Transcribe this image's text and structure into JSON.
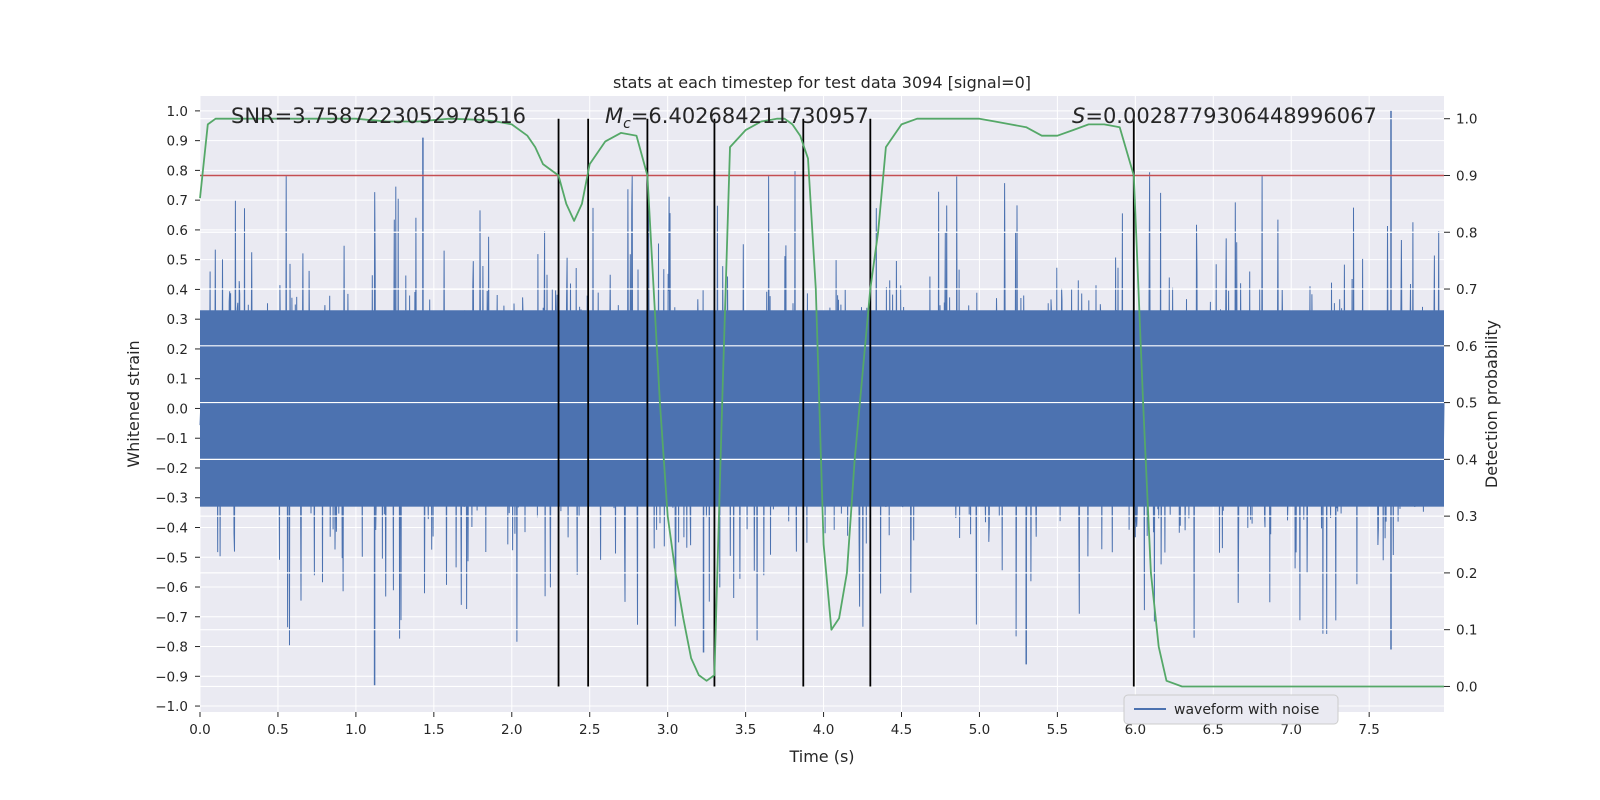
{
  "chart_data": {
    "type": "line",
    "title": "stats at each timestep for test data 3094 [signal=0]",
    "xlabel": "Time (s)",
    "ylabel": "Whitened strain",
    "y2label": "Detection probability",
    "xlim": [
      0.0,
      7.98
    ],
    "ylim": [
      -1.02,
      1.05
    ],
    "y2lim": [
      -0.045,
      1.04
    ],
    "x_ticks": [
      "0.0",
      "0.5",
      "1.0",
      "1.5",
      "2.0",
      "2.5",
      "3.0",
      "3.5",
      "4.0",
      "4.5",
      "5.0",
      "5.5",
      "6.0",
      "6.5",
      "7.0",
      "7.5"
    ],
    "y_ticks": [
      "1.0",
      "0.9",
      "0.8",
      "0.7",
      "0.6",
      "0.5",
      "0.4",
      "0.3",
      "0.2",
      "0.1",
      "0.0",
      "−0.1",
      "−0.2",
      "−0.3",
      "−0.4",
      "−0.5",
      "−0.6",
      "−0.7",
      "−0.8",
      "−0.9",
      "−1.0"
    ],
    "y2_ticks": [
      "1.0",
      "0.9",
      "0.8",
      "0.7",
      "0.6",
      "0.5",
      "0.4",
      "0.3",
      "0.2",
      "0.1",
      "0.0"
    ],
    "annotations": {
      "snr_label": "SNR=3.7587223052978516",
      "mc_symbol": "M",
      "mc_subscript": "c",
      "mc_value": "=6.402684211730957",
      "s_symbol": "S",
      "s_value": "=0.0028779306448996067"
    },
    "threshold": {
      "value": 0.9,
      "axis": "right",
      "color": "#c44e52"
    },
    "vertical_lines": [
      2.3,
      2.49,
      2.87,
      3.3,
      3.87,
      4.3,
      5.99
    ],
    "vertical_line_range": [
      0.0,
      1.0
    ],
    "legend": {
      "label": "waveform with noise",
      "position": "lower-right"
    },
    "series": [
      {
        "name": "waveform with noise",
        "axis": "left",
        "color": "#4c72b0",
        "kind": "noise",
        "duration": 8.0,
        "typical_abs_max": 0.55,
        "peaks": [
          {
            "x": 1.12,
            "y": -0.93
          },
          {
            "x": 1.43,
            "y": 0.91
          },
          {
            "x": 3.23,
            "y": -0.82
          },
          {
            "x": 5.3,
            "y": -0.86
          },
          {
            "x": 7.64,
            "y": 1.0
          },
          {
            "x": 7.64,
            "y": -0.81
          }
        ]
      },
      {
        "name": "Detection probability",
        "axis": "right",
        "color": "#55a868",
        "x": [
          0.0,
          0.05,
          0.1,
          0.2,
          0.4,
          0.6,
          0.8,
          1.0,
          1.2,
          1.4,
          1.6,
          1.8,
          1.9,
          2.0,
          2.1,
          2.15,
          2.2,
          2.3,
          2.35,
          2.4,
          2.45,
          2.5,
          2.6,
          2.7,
          2.8,
          2.87,
          2.95,
          3.0,
          3.05,
          3.1,
          3.15,
          3.2,
          3.25,
          3.3,
          3.35,
          3.4,
          3.5,
          3.6,
          3.7,
          3.75,
          3.8,
          3.85,
          3.9,
          3.95,
          4.0,
          4.05,
          4.1,
          4.15,
          4.2,
          4.25,
          4.3,
          4.35,
          4.4,
          4.5,
          4.6,
          4.7,
          4.8,
          4.9,
          5.0,
          5.1,
          5.2,
          5.3,
          5.4,
          5.5,
          5.6,
          5.7,
          5.8,
          5.9,
          5.99,
          6.05,
          6.1,
          6.15,
          6.2,
          6.3,
          6.5,
          7.0,
          7.5,
          7.98
        ],
        "y": [
          0.86,
          0.99,
          1.0,
          1.0,
          1.0,
          1.0,
          1.0,
          1.0,
          0.995,
          0.995,
          1.0,
          0.998,
          0.995,
          0.99,
          0.97,
          0.95,
          0.92,
          0.9,
          0.85,
          0.82,
          0.85,
          0.92,
          0.96,
          0.975,
          0.97,
          0.9,
          0.5,
          0.3,
          0.2,
          0.12,
          0.05,
          0.02,
          0.01,
          0.02,
          0.5,
          0.95,
          0.98,
          0.995,
          1.0,
          1.0,
          0.99,
          0.97,
          0.93,
          0.7,
          0.25,
          0.1,
          0.12,
          0.2,
          0.4,
          0.55,
          0.7,
          0.8,
          0.95,
          0.99,
          1.0,
          1.0,
          1.0,
          1.0,
          1.0,
          0.995,
          0.99,
          0.985,
          0.97,
          0.97,
          0.98,
          0.99,
          0.99,
          0.985,
          0.9,
          0.5,
          0.2,
          0.07,
          0.01,
          0.0,
          0.0,
          0.0,
          0.0,
          0.0
        ]
      }
    ]
  }
}
